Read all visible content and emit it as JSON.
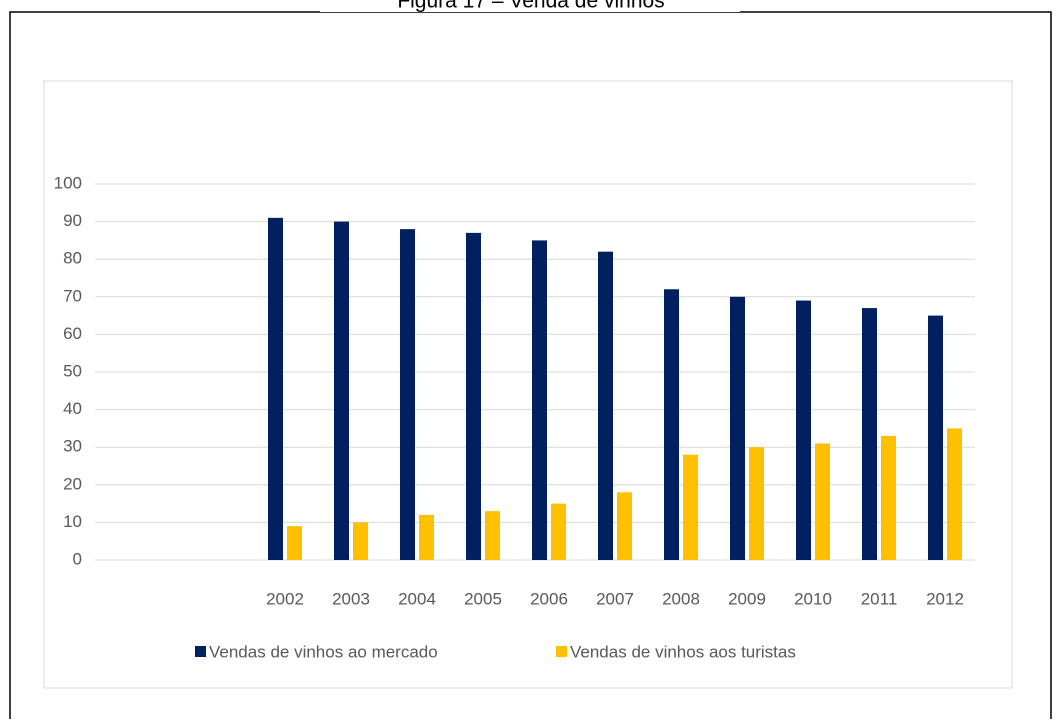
{
  "chart_data": {
    "type": "bar",
    "title": "Figura 17 – Venda de vinhos",
    "categories": [
      null,
      null,
      "2002",
      "2003",
      "2004",
      "2005",
      "2006",
      "2007",
      "2008",
      "2009",
      "2010",
      "2011",
      "2012"
    ],
    "series": [
      {
        "name": "Vendas de vinhos ao mercado",
        "color": "#002060",
        "values": [
          null,
          null,
          91,
          90,
          88,
          87,
          85,
          82,
          72,
          70,
          69,
          67,
          65
        ]
      },
      {
        "name": "Vendas de vinhos aos turistas",
        "color": "#ffc000",
        "values": [
          null,
          null,
          9,
          10,
          12,
          13,
          15,
          18,
          28,
          30,
          31,
          33,
          35
        ]
      }
    ],
    "ylim": [
      0,
      100
    ],
    "yticks": [
      0,
      10,
      20,
      30,
      40,
      50,
      60,
      70,
      80,
      90,
      100
    ],
    "grid": true,
    "legend": "bottom"
  }
}
